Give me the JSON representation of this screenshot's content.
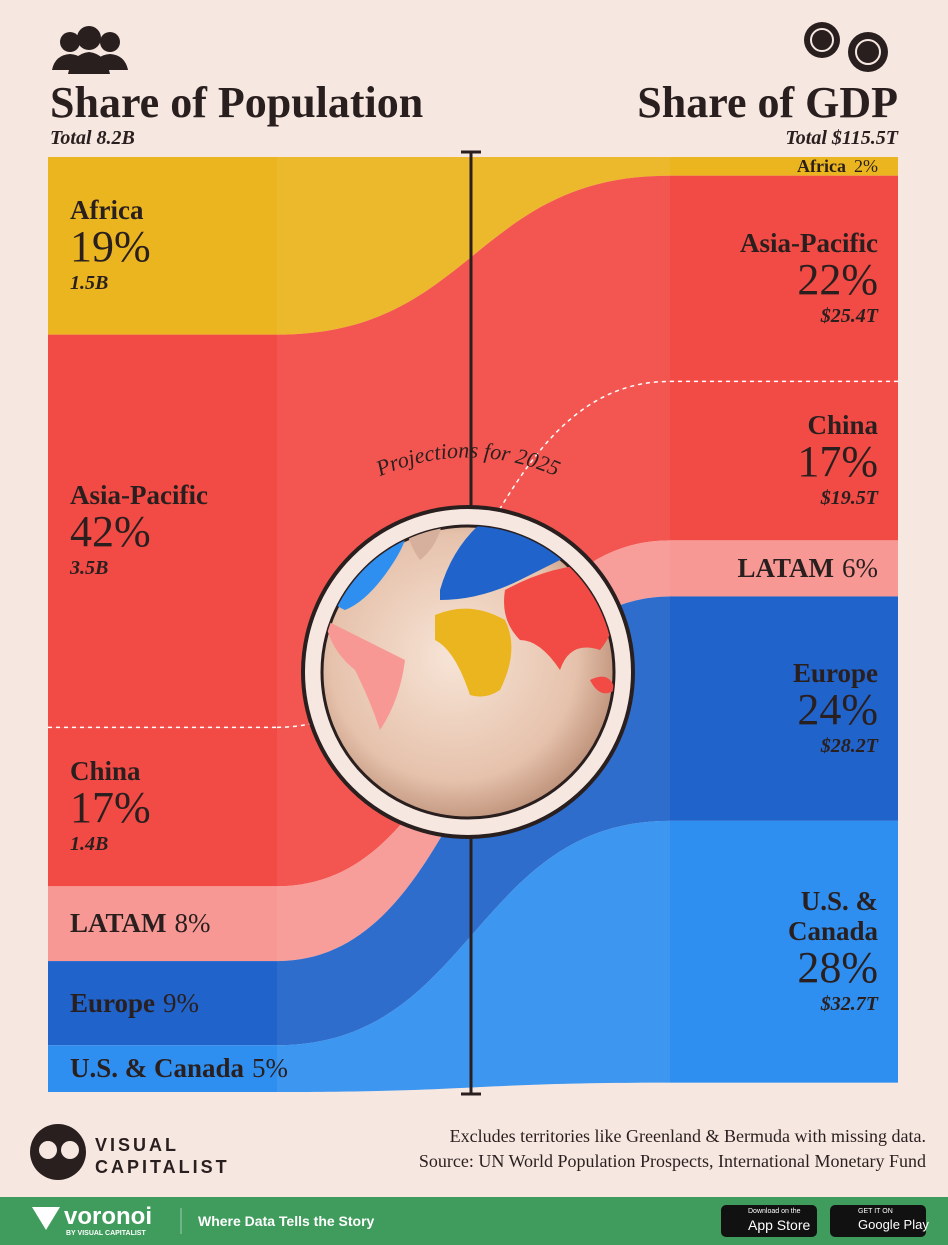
{
  "header": {
    "population_title": "Share of Population",
    "population_total": "Total 8.2B",
    "gdp_title": "Share of GDP",
    "gdp_total": "Total $115.5T"
  },
  "chart_data": {
    "type": "sankey",
    "center_label": "Projections for 2025",
    "left": {
      "segments": [
        {
          "name": "Africa",
          "share": 19,
          "share_label": "19%",
          "amount": "1.5B",
          "color": "#ebb51f"
        },
        {
          "name": "Asia-Pacific",
          "share": 42,
          "share_label": "42%",
          "amount": "3.5B",
          "color": "#f24a45"
        },
        {
          "name": "China",
          "share": 17,
          "share_label": "17%",
          "amount": "1.4B",
          "color": "#f24a45"
        },
        {
          "name": "LATAM",
          "share": 8,
          "share_label": "8%",
          "color": "#f89894"
        },
        {
          "name": "Europe",
          "share": 9,
          "share_label": "9%",
          "color": "#1f63cb"
        },
        {
          "name": "U.S. & Canada",
          "share": 5,
          "share_label": "5%",
          "color": "#2e8ff0"
        }
      ]
    },
    "right": {
      "segments": [
        {
          "name": "Africa",
          "share": 2,
          "share_label": "2%",
          "color": "#ebb51f"
        },
        {
          "name": "Asia-Pacific",
          "share": 22,
          "share_label": "22%",
          "amount": "$25.4T",
          "color": "#f24a45"
        },
        {
          "name": "China",
          "share": 17,
          "share_label": "17%",
          "amount": "$19.5T",
          "color": "#f24a45"
        },
        {
          "name": "LATAM",
          "share": 6,
          "share_label": "6%",
          "color": "#f89894"
        },
        {
          "name": "Europe",
          "share": 24,
          "share_label": "24%",
          "amount": "$28.2T",
          "color": "#1f63cb"
        },
        {
          "name": "U.S. & Canada",
          "share": 28,
          "share_label": "28%",
          "amount": "$32.7T",
          "color": "#2e8ff0"
        }
      ]
    }
  },
  "footer": {
    "brand_top": "VISUAL",
    "brand_bottom": "CAPITALIST",
    "note": "Excludes territories like Greenland & Bermuda with missing data.",
    "source": "Source: UN World Population Prospects, International Monetary Fund"
  },
  "banner": {
    "logo": "voronoi",
    "logo_sub": "BY VISUAL CAPITALIST",
    "tagline": "Where Data Tells the Story",
    "apple_small": "Download on the",
    "apple": "App Store",
    "google_small": "GET IT ON",
    "google": "Google Play"
  }
}
